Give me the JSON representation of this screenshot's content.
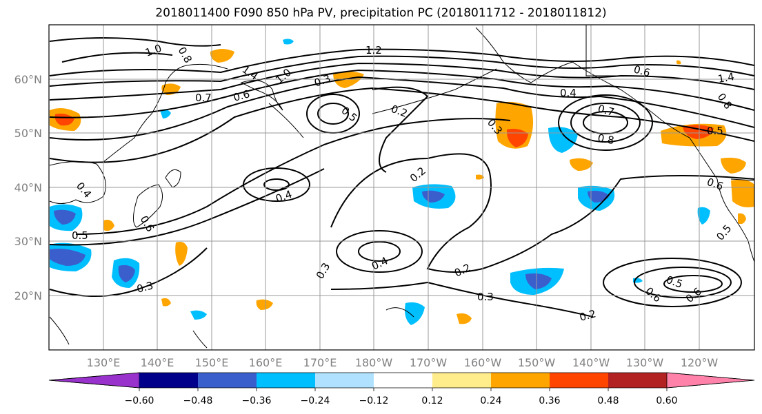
{
  "title": "2018011400 F090 850 hPa PV, precipitation PC (2018011712 - 2018011812)",
  "lat_labels": [
    "60°N",
    "50°N",
    "40°N",
    "30°N",
    "20°N"
  ],
  "lon_labels": [
    "130°E",
    "140°E",
    "150°E",
    "160°E",
    "170°E",
    "180°W",
    "170°W",
    "160°W",
    "150°W",
    "140°W",
    "130°W",
    "120°W"
  ],
  "colorbar": {
    "colors": [
      "#9932cc",
      "#00008b",
      "#3a5fcd",
      "#00bfff",
      "#b0e2ff",
      "#ffffff",
      "#ffec8b",
      "#ffa500",
      "#ff4500",
      "#b22222",
      "#ff82ab"
    ],
    "tick_labels": [
      "−0.60",
      "−0.48",
      "−0.36",
      "−0.24",
      "−0.12",
      "0.12",
      "0.24",
      "0.36",
      "0.48",
      "0.60"
    ]
  },
  "contour_labels": [
    "1.0",
    "0.8",
    "0.7",
    "0.6",
    "1.4",
    "1.0",
    "1.2",
    "0.3",
    "0.5",
    "0.2",
    "0.3",
    "0.4",
    "0.6",
    "1.4",
    "0.7",
    "0.8",
    "0.5",
    "0.8",
    "0.6",
    "0.2",
    "0.4",
    "0.5",
    "0.5",
    "0.6",
    "0.3",
    "0.4",
    "0.2",
    "0.3",
    "0.3",
    "0.2",
    "0.6",
    "0.5",
    "0.6",
    "0.4"
  ]
}
